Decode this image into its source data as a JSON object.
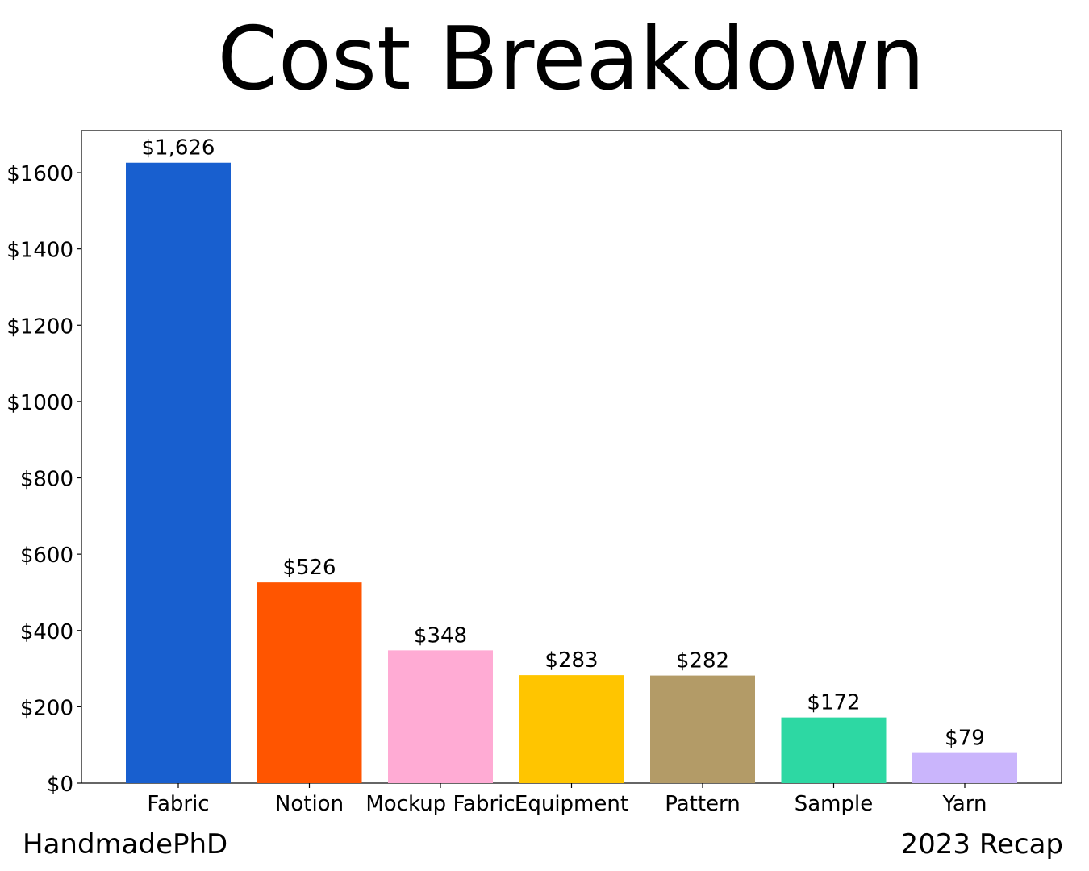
{
  "chart_data": {
    "type": "bar",
    "title": "Cost Breakdown",
    "xlabel": "",
    "ylabel": "",
    "categories": [
      "Fabric",
      "Notion",
      "Mockup Fabric",
      "Equipment",
      "Pattern",
      "Sample",
      "Yarn"
    ],
    "values": [
      1626,
      526,
      348,
      283,
      282,
      172,
      79
    ],
    "value_labels": [
      "$1,626",
      "$526",
      "$348",
      "$283",
      "$282",
      "$172",
      "$79"
    ],
    "colors": [
      "#185fcf",
      "#ff5500",
      "#ffabd4",
      "#ffc500",
      "#b39b67",
      "#2dd8a3",
      "#cab5fc"
    ],
    "ylim": [
      0,
      1710
    ],
    "yticks": [
      0,
      200,
      400,
      600,
      800,
      1000,
      1200,
      1400,
      1600
    ],
    "ytick_labels": [
      "$0",
      "$200",
      "$400",
      "$600",
      "$800",
      "$1000",
      "$1200",
      "$1400",
      "$1600"
    ],
    "grid": false,
    "legend": "none"
  },
  "footer": {
    "left": "HandmadePhD",
    "right": "2023 Recap"
  }
}
